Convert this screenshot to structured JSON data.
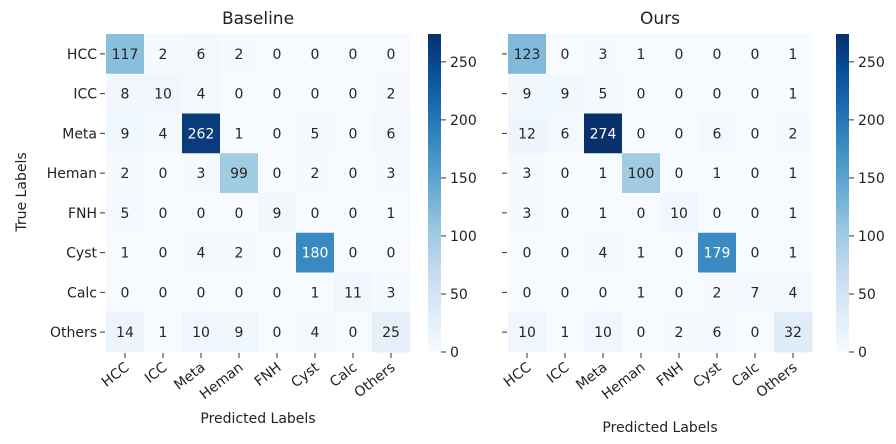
{
  "chart_data": [
    {
      "type": "heatmap",
      "title": "Baseline",
      "xlabel": "Predicted Labels",
      "ylabel": "True Labels",
      "x_categories": [
        "HCC",
        "ICC",
        "Meta",
        "Heman",
        "FNH",
        "Cyst",
        "Calc",
        "Others"
      ],
      "y_categories": [
        "HCC",
        "ICC",
        "Meta",
        "Heman",
        "FNH",
        "Cyst",
        "Calc",
        "Others"
      ],
      "values": [
        [
          117,
          2,
          6,
          2,
          0,
          0,
          0,
          0
        ],
        [
          8,
          10,
          4,
          0,
          0,
          0,
          0,
          2
        ],
        [
          9,
          4,
          262,
          1,
          0,
          5,
          0,
          6
        ],
        [
          2,
          0,
          3,
          99,
          0,
          2,
          0,
          3
        ],
        [
          5,
          0,
          0,
          0,
          9,
          0,
          0,
          1
        ],
        [
          1,
          0,
          4,
          2,
          0,
          180,
          0,
          0
        ],
        [
          0,
          0,
          0,
          0,
          0,
          1,
          11,
          3
        ],
        [
          14,
          1,
          10,
          9,
          0,
          4,
          0,
          25
        ]
      ],
      "colorbar": {
        "min": 0,
        "max": 274,
        "ticks": [
          0,
          50,
          100,
          150,
          200,
          250
        ]
      },
      "colormap": "Blues"
    },
    {
      "type": "heatmap",
      "title": "Ours",
      "xlabel": "Predicted Labels",
      "ylabel": "",
      "x_categories": [
        "HCC",
        "ICC",
        "Meta",
        "Heman",
        "FNH",
        "Cyst",
        "Calc",
        "Others"
      ],
      "y_categories": [
        "",
        "",
        "",
        "",
        "",
        "",
        "",
        ""
      ],
      "values": [
        [
          123,
          0,
          3,
          1,
          0,
          0,
          0,
          1
        ],
        [
          9,
          9,
          5,
          0,
          0,
          0,
          0,
          1
        ],
        [
          12,
          6,
          274,
          0,
          0,
          6,
          0,
          2
        ],
        [
          3,
          0,
          1,
          100,
          0,
          1,
          0,
          1
        ],
        [
          3,
          0,
          1,
          0,
          10,
          0,
          0,
          1
        ],
        [
          0,
          0,
          4,
          1,
          0,
          179,
          0,
          1
        ],
        [
          0,
          0,
          0,
          1,
          0,
          2,
          7,
          4
        ],
        [
          10,
          1,
          10,
          0,
          2,
          6,
          0,
          32
        ]
      ],
      "colorbar": {
        "min": 0,
        "max": 274,
        "ticks": [
          0,
          50,
          100,
          150,
          200,
          250
        ]
      },
      "colormap": "Blues"
    }
  ]
}
